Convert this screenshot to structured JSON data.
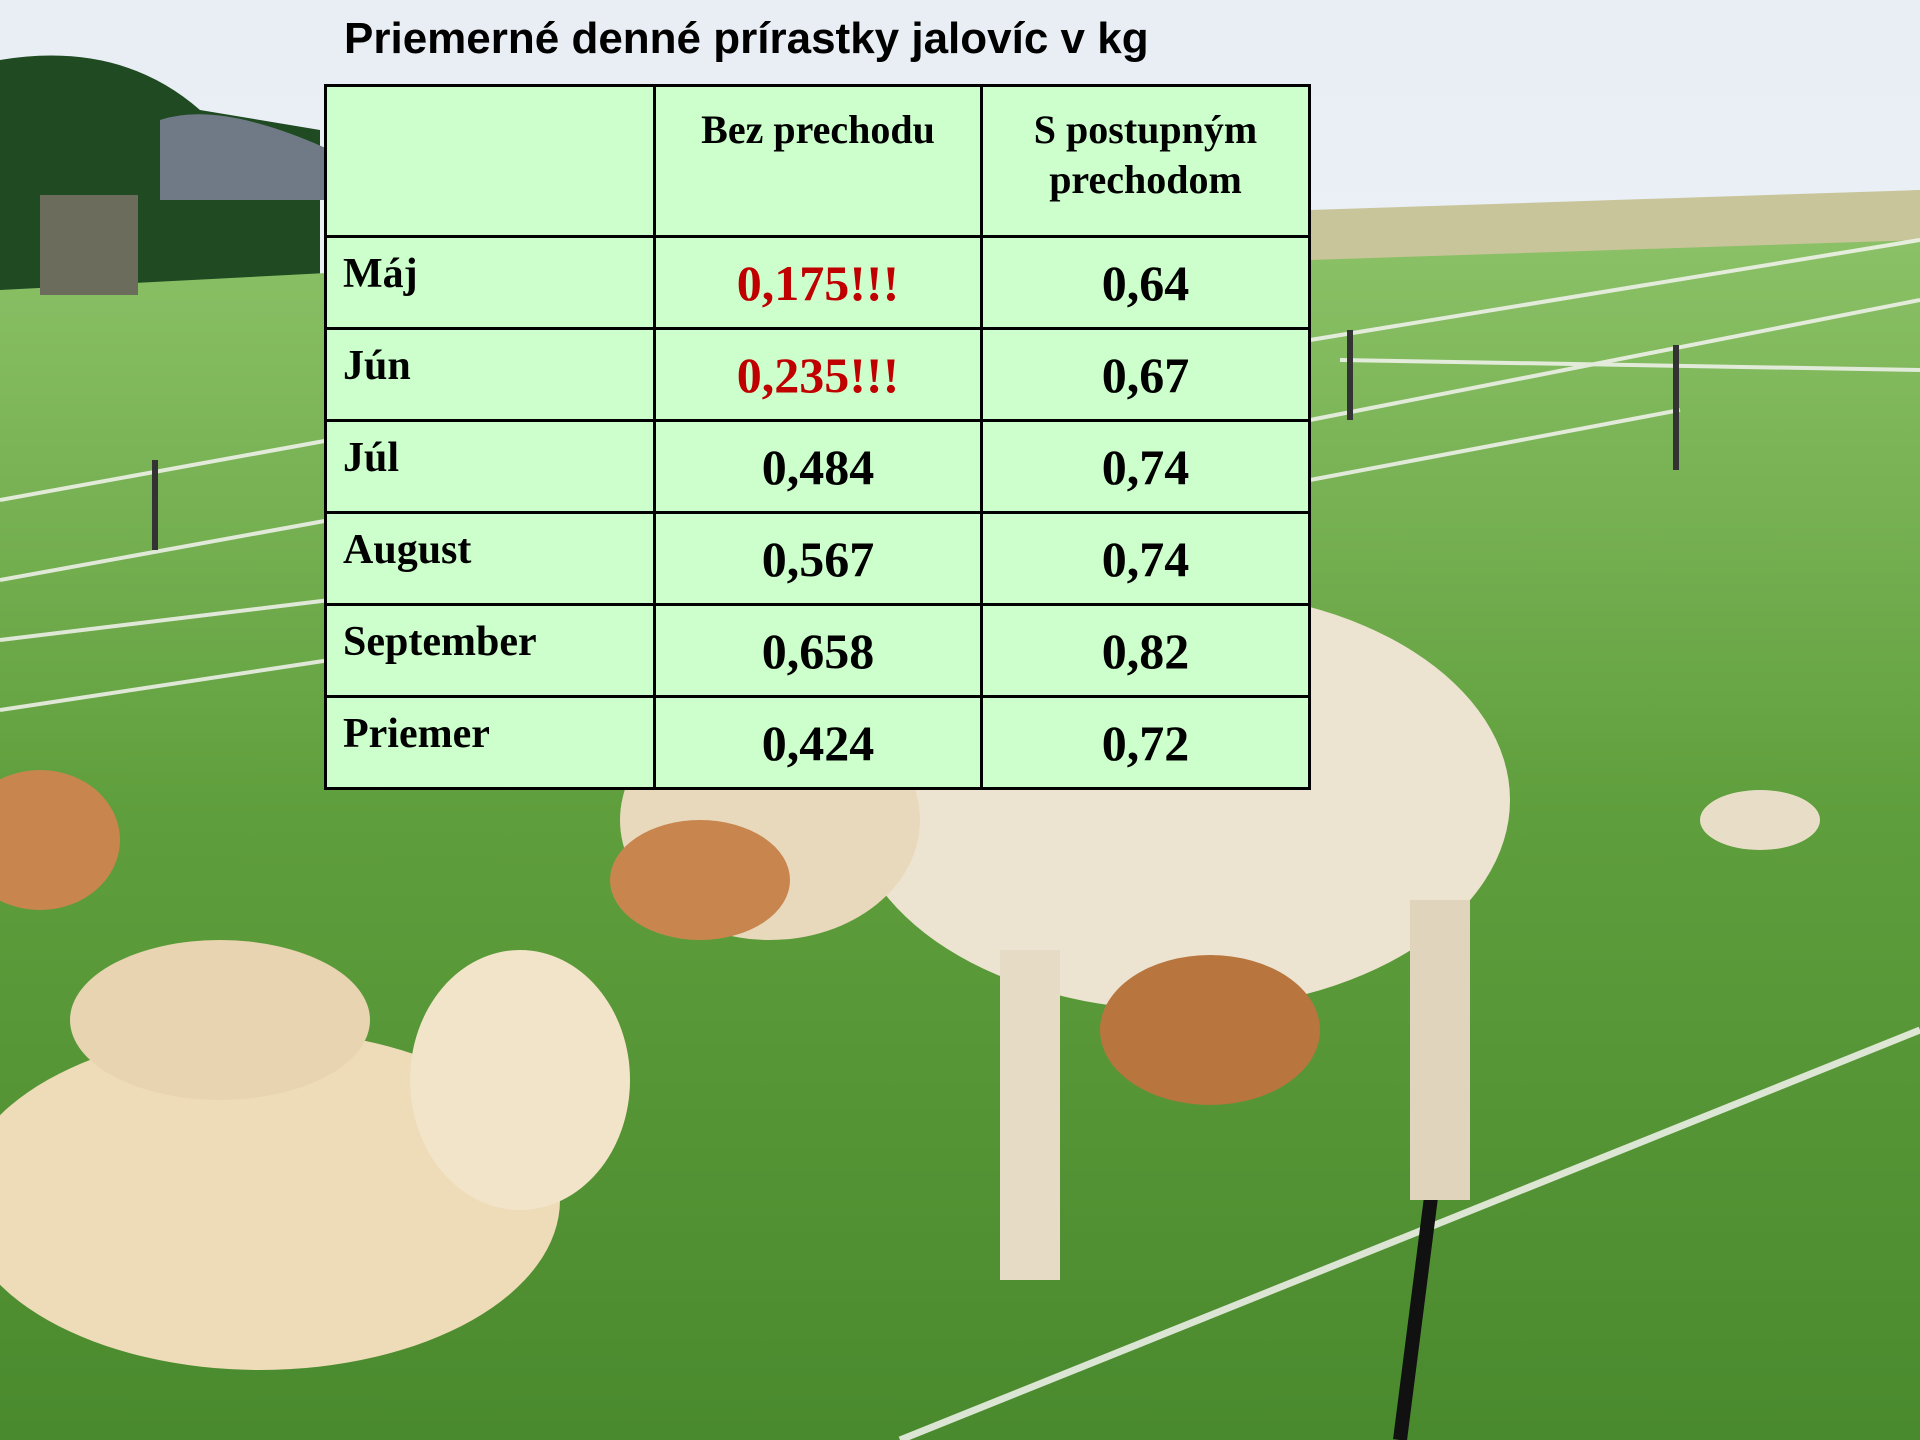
{
  "title": "Priemerné denné prírastky jalovíc v kg",
  "table": {
    "header": [
      "Bez prechodu",
      "S postupným prechodom"
    ],
    "rows": [
      [
        "Máj",
        "0,175!!!",
        "0,64"
      ],
      [
        "Jún",
        "0,235!!!",
        "0,67"
      ],
      [
        "Júl",
        "0,484",
        "0,74"
      ],
      [
        "August",
        "0,567",
        "0,74"
      ],
      [
        "September",
        "0,658",
        "0,82"
      ],
      [
        "Priemer",
        "0,424",
        "0,72"
      ]
    ]
  }
}
